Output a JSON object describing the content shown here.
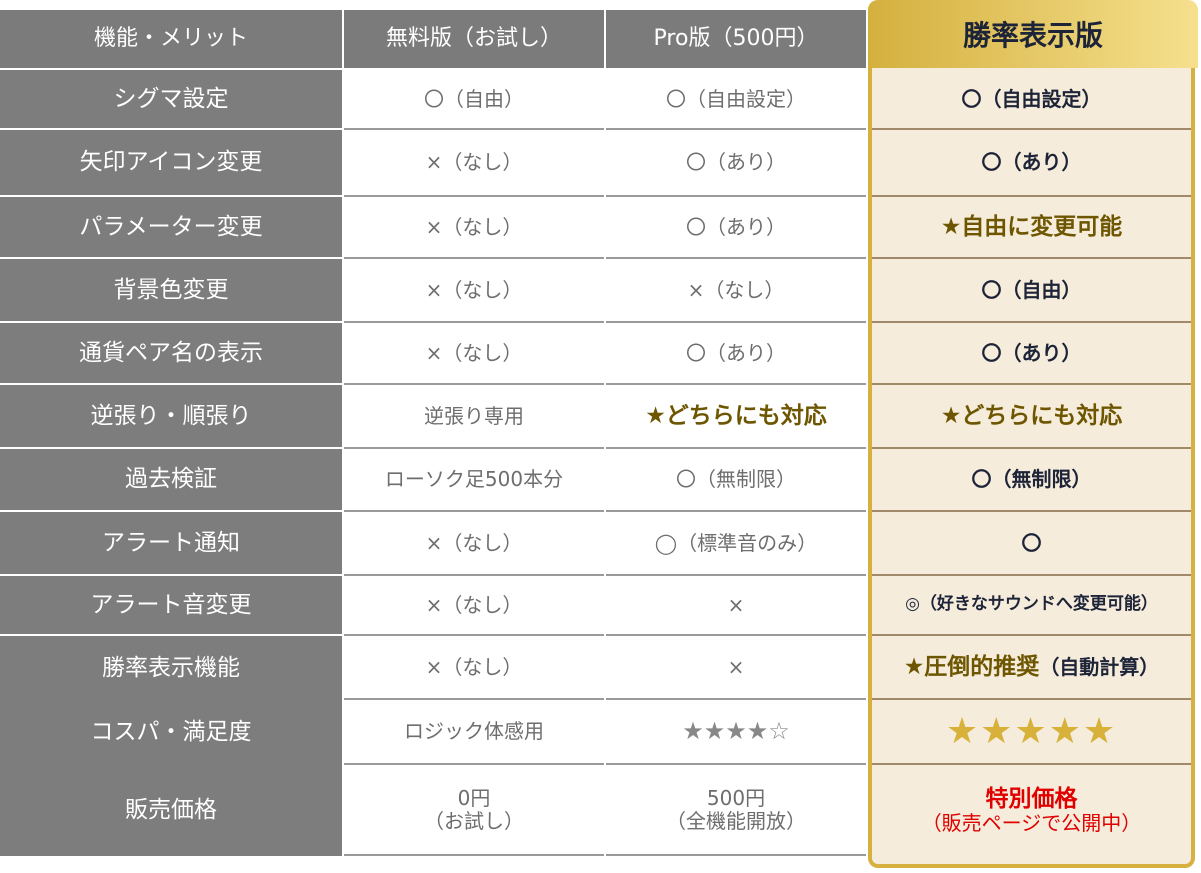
{
  "header": {
    "feature": "機能・メリット",
    "free": "無料版（お試し）",
    "pro": "Pro版（500円）",
    "winrate": "勝率表示版"
  },
  "colors": {
    "gray": "#7b7b7b",
    "gold": "#d4b03e",
    "cream": "#f5ecdb",
    "highlight_text": "#6e5600",
    "price_red": "#e00000"
  },
  "rows": [
    {
      "feature": "シグマ設定",
      "free": "〇（自由）",
      "pro": "〇（自由設定）",
      "winrate": "〇（自由設定）"
    },
    {
      "feature": "矢印アイコン変更",
      "free": "×（なし）",
      "pro": "〇（あり）",
      "winrate": "〇（あり）"
    },
    {
      "feature": "パラメーター変更",
      "free": "×（なし）",
      "pro": "〇（あり）",
      "winrate": "★自由に変更可能"
    },
    {
      "feature": "背景色変更",
      "free": "×（なし）",
      "pro": "×（なし）",
      "winrate": "〇（自由）"
    },
    {
      "feature": "通貨ペア名の表示",
      "free": "×（なし）",
      "pro": "〇（あり）",
      "winrate": "〇（あり）"
    },
    {
      "feature": "逆張り・順張り",
      "free": "逆張り専用",
      "pro": "★どちらにも対応",
      "winrate": "★どちらにも対応"
    },
    {
      "feature": "過去検証",
      "free": "ローソク足500本分",
      "pro": "〇（無制限）",
      "winrate": "〇（無制限）"
    },
    {
      "feature": "アラート通知",
      "free": "×（なし）",
      "pro": "◯（標準音のみ）",
      "winrate": "〇"
    },
    {
      "feature": "アラート音変更",
      "free": "×（なし）",
      "pro": "×",
      "winrate": "◎（好きなサウンドへ変更可能）"
    },
    {
      "feature": "勝率表示機能",
      "free": "×（なし）",
      "pro": "×",
      "winrate": "★圧倒的推奨",
      "winrate_suffix": "（自動計算）"
    },
    {
      "feature": "コスパ・満足度",
      "free": "ロジック体感用",
      "pro": "★★★★☆",
      "winrate": "★★★★★"
    },
    {
      "feature": "販売価格",
      "free": "0円",
      "free_sub": "（お試し）",
      "pro": "500円",
      "pro_sub": "（全機能開放）",
      "winrate": "特別価格",
      "winrate_sub": "（販売ページで公開中）"
    }
  ]
}
